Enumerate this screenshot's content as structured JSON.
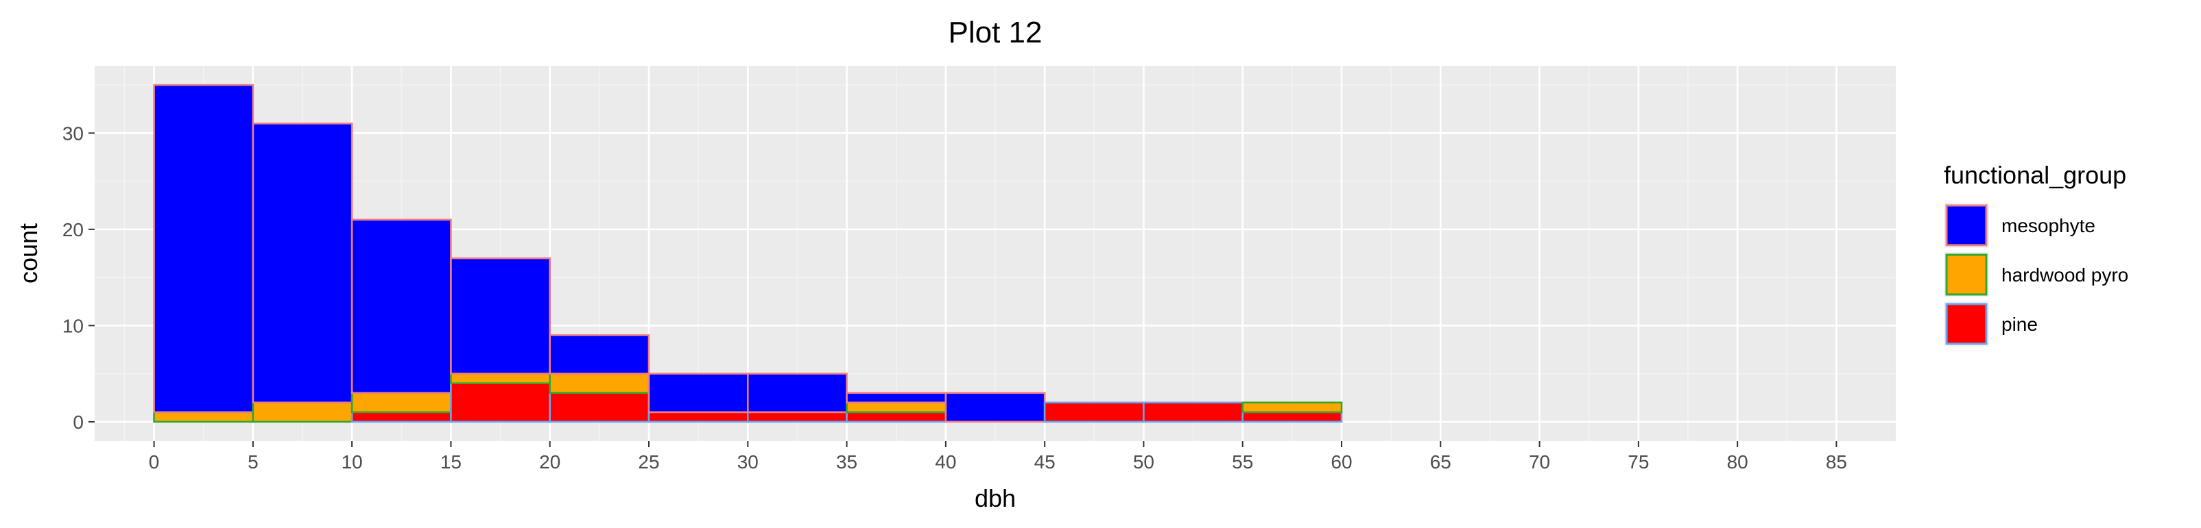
{
  "chart_data": {
    "type": "bar",
    "stacked": true,
    "title": "Plot 12",
    "xlabel": "dbh",
    "ylabel": "count",
    "bin_width": 5,
    "bins": [
      0,
      5,
      10,
      15,
      20,
      25,
      30,
      35,
      40,
      45,
      50,
      55,
      60,
      65,
      70,
      75,
      80
    ],
    "xlim": [
      -3,
      88
    ],
    "ylim": [
      -2,
      37
    ],
    "x_ticks": [
      "0",
      "5",
      "10",
      "15",
      "20",
      "25",
      "30",
      "35",
      "40",
      "45",
      "50",
      "55",
      "60",
      "65",
      "70",
      "75",
      "80",
      "85"
    ],
    "y_ticks": [
      "0",
      "10",
      "20",
      "30"
    ],
    "grid": true,
    "legend_position": "right",
    "legend_title": "functional_group",
    "series": [
      {
        "name": "pine",
        "fill": "#ff0000",
        "outline": "#6aa5f0",
        "values": [
          0,
          0,
          1,
          4,
          3,
          1,
          1,
          1,
          0,
          2,
          2,
          1,
          0,
          0,
          0,
          0,
          0
        ]
      },
      {
        "name": "hardwood pyro",
        "fill": "#ffa500",
        "outline": "#2ea82e",
        "values": [
          1,
          2,
          2,
          1,
          2,
          0,
          0,
          1,
          0,
          0,
          0,
          1,
          0,
          0,
          0,
          0,
          0
        ]
      },
      {
        "name": "mesophyte",
        "fill": "#0000ff",
        "outline": "#f08080",
        "values": [
          34,
          29,
          18,
          12,
          4,
          4,
          4,
          1,
          3,
          0,
          0,
          0,
          0,
          0,
          0,
          0,
          0
        ]
      }
    ],
    "legend_order": [
      "mesophyte",
      "hardwood pyro",
      "pine"
    ]
  }
}
